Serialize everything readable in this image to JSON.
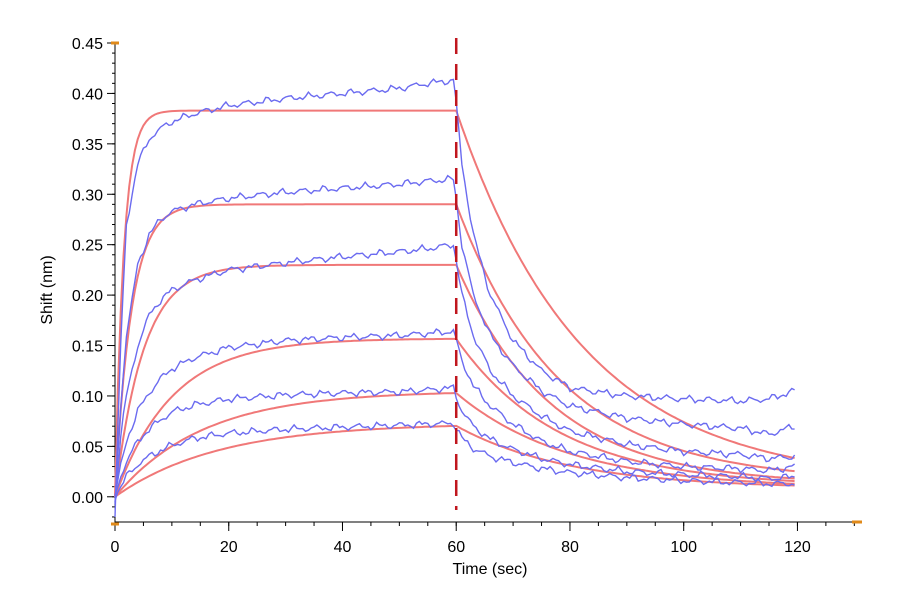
{
  "chart_data": {
    "type": "line",
    "xlabel": "Time (sec)",
    "ylabel": "Shift (nm)",
    "xlim": [
      0,
      131
    ],
    "ylim": [
      -0.025,
      0.45
    ],
    "x_ticks": [
      0,
      20,
      40,
      60,
      80,
      100,
      120
    ],
    "y_ticks": [
      0.0,
      0.05,
      0.1,
      0.15,
      0.2,
      0.25,
      0.3,
      0.35,
      0.4,
      0.45
    ],
    "x_tick_labels": [
      "0",
      "20",
      "40",
      "60",
      "80",
      "100",
      "120"
    ],
    "y_tick_labels": [
      "0.00",
      "0.05",
      "0.10",
      "0.15",
      "0.20",
      "0.25",
      "0.30",
      "0.35",
      "0.40",
      "0.45"
    ],
    "grid": false,
    "legend": "none",
    "dissociation_start_x": 60,
    "colors": {
      "measured": "#6b6bf0",
      "fit": "#f07878",
      "marker_line": "#c0161e",
      "axis_ends": "#e08a1a"
    },
    "fit_curves": [
      {
        "plateau": 0.383,
        "kon": 0.65,
        "koff": 0.045,
        "floor": 0.013
      },
      {
        "plateau": 0.29,
        "kon": 0.35,
        "koff": 0.055,
        "floor": 0.015
      },
      {
        "plateau": 0.23,
        "kon": 0.2,
        "koff": 0.06,
        "floor": 0.012
      },
      {
        "plateau": 0.157,
        "kon": 0.1,
        "koff": 0.055,
        "floor": 0.01
      },
      {
        "plateau": 0.105,
        "kon": 0.065,
        "koff": 0.05,
        "floor": 0.008
      },
      {
        "plateau": 0.073,
        "kon": 0.055,
        "koff": 0.05,
        "floor": 0.008
      }
    ],
    "measured_series": [
      {
        "x": [
          0,
          1,
          2,
          4,
          6,
          8,
          10,
          14,
          20,
          30,
          40,
          50,
          55,
          59.5,
          60,
          61,
          63,
          66,
          70,
          75,
          80,
          90,
          100,
          110,
          115,
          119.5
        ],
        "y": [
          -0.02,
          0.15,
          0.27,
          0.33,
          0.355,
          0.365,
          0.372,
          0.38,
          0.388,
          0.395,
          0.4,
          0.405,
          0.41,
          0.413,
          0.39,
          0.33,
          0.26,
          0.2,
          0.155,
          0.125,
          0.108,
          0.1,
          0.097,
          0.095,
          0.097,
          0.105
        ]
      },
      {
        "x": [
          0,
          1,
          2,
          4,
          6,
          8,
          10,
          14,
          20,
          30,
          40,
          50,
          55,
          59.5,
          60,
          61,
          63,
          66,
          70,
          75,
          80,
          90,
          100,
          110,
          115,
          119.5
        ],
        "y": [
          -0.01,
          0.09,
          0.16,
          0.23,
          0.26,
          0.275,
          0.283,
          0.29,
          0.296,
          0.302,
          0.306,
          0.31,
          0.313,
          0.315,
          0.295,
          0.25,
          0.2,
          0.16,
          0.13,
          0.105,
          0.09,
          0.078,
          0.072,
          0.068,
          0.062,
          0.07
        ]
      },
      {
        "x": [
          0,
          1,
          2,
          4,
          6,
          8,
          10,
          14,
          20,
          30,
          40,
          50,
          55,
          59.5,
          60,
          61,
          63,
          66,
          70,
          75,
          80,
          90,
          100,
          110,
          115,
          119.5
        ],
        "y": [
          -0.005,
          0.06,
          0.1,
          0.15,
          0.18,
          0.195,
          0.205,
          0.215,
          0.225,
          0.232,
          0.238,
          0.243,
          0.246,
          0.25,
          0.235,
          0.2,
          0.16,
          0.125,
          0.1,
          0.08,
          0.065,
          0.052,
          0.045,
          0.042,
          0.038,
          0.04
        ]
      },
      {
        "x": [
          0,
          1,
          2,
          4,
          6,
          8,
          10,
          14,
          20,
          30,
          40,
          50,
          55,
          59.5,
          60,
          61,
          63,
          66,
          70,
          75,
          80,
          90,
          100,
          110,
          115,
          119.5
        ],
        "y": [
          0.0,
          0.03,
          0.055,
          0.085,
          0.103,
          0.117,
          0.127,
          0.138,
          0.148,
          0.155,
          0.158,
          0.16,
          0.162,
          0.164,
          0.155,
          0.135,
          0.11,
          0.09,
          0.072,
          0.055,
          0.045,
          0.035,
          0.03,
          0.028,
          0.026,
          0.03
        ]
      },
      {
        "x": [
          0,
          1,
          2,
          4,
          6,
          8,
          10,
          14,
          20,
          30,
          40,
          50,
          55,
          59.5,
          60,
          61,
          63,
          66,
          70,
          75,
          80,
          90,
          100,
          110,
          115,
          119.5
        ],
        "y": [
          0.0,
          0.02,
          0.035,
          0.055,
          0.067,
          0.076,
          0.084,
          0.091,
          0.097,
          0.101,
          0.103,
          0.104,
          0.106,
          0.108,
          0.1,
          0.085,
          0.07,
          0.057,
          0.047,
          0.038,
          0.032,
          0.025,
          0.022,
          0.02,
          0.018,
          0.02
        ]
      },
      {
        "x": [
          0,
          1,
          2,
          4,
          6,
          8,
          10,
          14,
          20,
          30,
          40,
          50,
          55,
          59.5,
          60,
          61,
          63,
          66,
          70,
          75,
          80,
          90,
          100,
          110,
          115,
          119.5
        ],
        "y": [
          0.0,
          0.01,
          0.02,
          0.032,
          0.04,
          0.046,
          0.051,
          0.058,
          0.063,
          0.067,
          0.069,
          0.071,
          0.072,
          0.073,
          0.068,
          0.058,
          0.048,
          0.04,
          0.034,
          0.028,
          0.024,
          0.019,
          0.016,
          0.014,
          0.013,
          0.013
        ]
      }
    ]
  }
}
